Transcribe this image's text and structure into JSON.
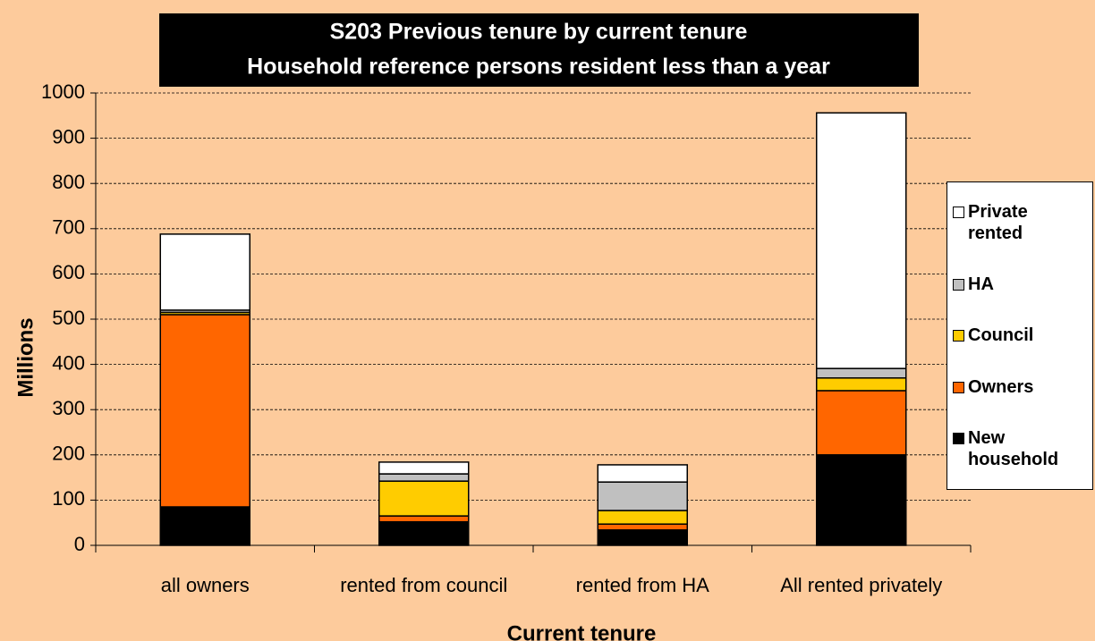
{
  "chart_data": {
    "type": "stacked_bar",
    "title": "S203 Previous tenure by current tenure",
    "subtitle": "Household reference persons resident less than a year",
    "x_label": "Current tenure",
    "y_label": "Millions",
    "categories": [
      "all owners",
      "rented from council",
      "rented from HA",
      "All rented privately"
    ],
    "series": [
      {
        "name": "New household",
        "color": "#000000",
        "values": [
          85,
          52,
          34,
          200
        ]
      },
      {
        "name": "Owners",
        "color": "#ff6600",
        "values": [
          425,
          13,
          13,
          142
        ]
      },
      {
        "name": "Council",
        "color": "#ffcc00",
        "values": [
          5,
          77,
          30,
          28
        ]
      },
      {
        "name": "HA",
        "color": "#c0c0c0",
        "values": [
          5,
          16,
          63,
          21
        ]
      },
      {
        "name": "Private rented",
        "color": "#ffffff",
        "values": [
          168,
          26,
          38,
          565
        ]
      }
    ],
    "ylim": [
      0,
      1000
    ],
    "yticks": [
      0,
      100,
      200,
      300,
      400,
      500,
      600,
      700,
      800,
      900,
      1000
    ],
    "grid": true,
    "legend": "right"
  }
}
